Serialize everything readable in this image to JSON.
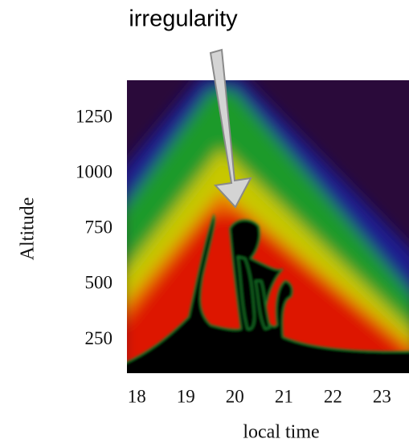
{
  "chart_data": {
    "type": "heatmap",
    "annotation": "irregularity",
    "xlabel": "local time",
    "ylabel": "Altitude",
    "xlim": [
      17.8,
      23.55
    ],
    "xticks": [
      18,
      19,
      20,
      21,
      22,
      23
    ],
    "ylim": [
      100,
      1420
    ],
    "yticks": [
      250,
      500,
      750,
      1000,
      1250
    ]
  }
}
